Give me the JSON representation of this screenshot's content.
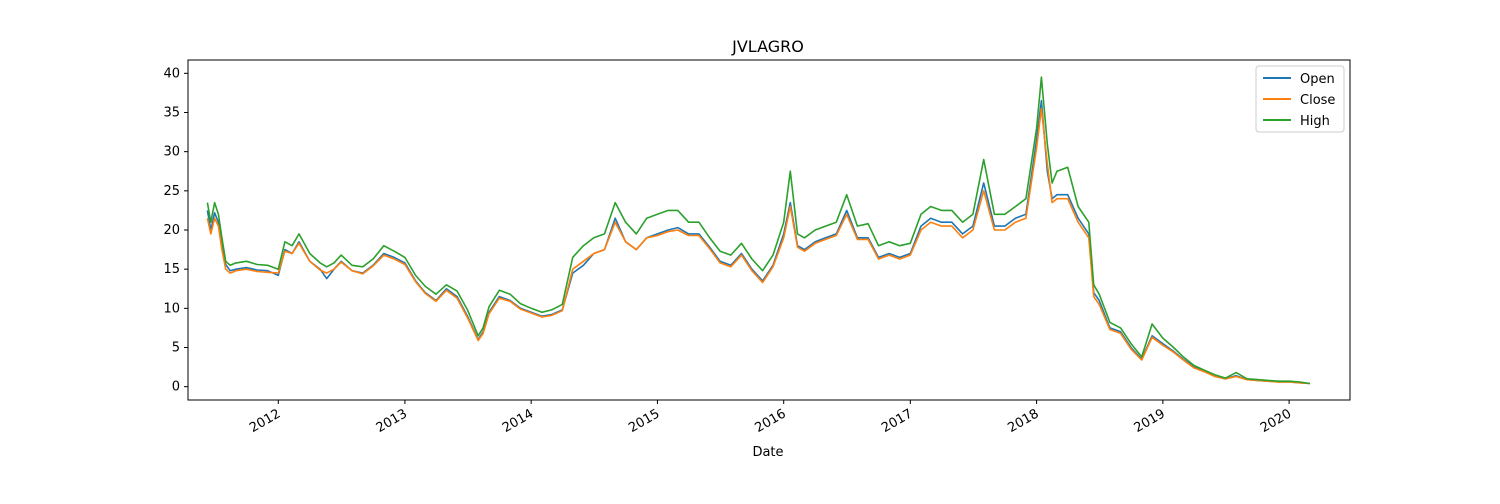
{
  "chart_data": {
    "type": "line",
    "title": "JVLAGRO",
    "xlabel": "Date",
    "ylabel": "",
    "x_range": [
      "2011-04-15",
      "2020-06-25"
    ],
    "ylim": [
      -1.7,
      41.7
    ],
    "yticks": [
      0,
      5,
      10,
      15,
      20,
      25,
      30,
      35,
      40
    ],
    "xticks": [
      {
        "label": "2012",
        "date": "2012-01-01"
      },
      {
        "label": "2013",
        "date": "2013-01-01"
      },
      {
        "label": "2014",
        "date": "2014-01-01"
      },
      {
        "label": "2015",
        "date": "2015-01-01"
      },
      {
        "label": "2016",
        "date": "2016-01-01"
      },
      {
        "label": "2017",
        "date": "2017-01-01"
      },
      {
        "label": "2018",
        "date": "2018-01-01"
      },
      {
        "label": "2019",
        "date": "2019-01-01"
      },
      {
        "label": "2020",
        "date": "2020-01-01"
      }
    ],
    "x_tick_rotation_deg": 30,
    "grid": false,
    "legend_position": "top-right",
    "x": [
      "2011-06-10",
      "2011-06-20",
      "2011-07-01",
      "2011-07-12",
      "2011-07-22",
      "2011-08-02",
      "2011-08-15",
      "2011-09-01",
      "2011-10-01",
      "2011-11-01",
      "2011-12-01",
      "2012-01-01",
      "2012-01-20",
      "2012-02-10",
      "2012-03-01",
      "2012-04-01",
      "2012-05-01",
      "2012-05-20",
      "2012-06-10",
      "2012-07-01",
      "2012-08-01",
      "2012-09-01",
      "2012-10-01",
      "2012-11-01",
      "2012-12-01",
      "2013-01-01",
      "2013-02-01",
      "2013-03-01",
      "2013-04-01",
      "2013-05-01",
      "2013-06-01",
      "2013-07-01",
      "2013-08-01",
      "2013-08-15",
      "2013-09-01",
      "2013-10-01",
      "2013-11-01",
      "2013-12-01",
      "2014-01-01",
      "2014-02-01",
      "2014-03-01",
      "2014-04-01",
      "2014-05-01",
      "2014-06-01",
      "2014-07-01",
      "2014-08-01",
      "2014-09-01",
      "2014-10-01",
      "2014-11-01",
      "2014-12-01",
      "2015-01-01",
      "2015-02-01",
      "2015-03-01",
      "2015-04-01",
      "2015-05-01",
      "2015-06-01",
      "2015-07-01",
      "2015-08-01",
      "2015-09-01",
      "2015-10-01",
      "2015-11-01",
      "2015-12-01",
      "2016-01-01",
      "2016-01-20",
      "2016-02-10",
      "2016-03-01",
      "2016-04-01",
      "2016-05-01",
      "2016-06-01",
      "2016-07-01",
      "2016-08-01",
      "2016-09-01",
      "2016-10-01",
      "2016-11-01",
      "2016-12-01",
      "2017-01-01",
      "2017-02-01",
      "2017-03-01",
      "2017-04-01",
      "2017-05-01",
      "2017-06-01",
      "2017-07-01",
      "2017-08-01",
      "2017-09-01",
      "2017-10-01",
      "2017-11-01",
      "2017-12-01",
      "2018-01-01",
      "2018-01-15",
      "2018-02-01",
      "2018-02-15",
      "2018-03-01",
      "2018-04-01",
      "2018-05-01",
      "2018-06-01",
      "2018-06-15",
      "2018-07-01",
      "2018-08-01",
      "2018-09-01",
      "2018-10-01",
      "2018-11-01",
      "2018-12-01",
      "2019-01-01",
      "2019-02-01",
      "2019-03-01",
      "2019-04-01",
      "2019-05-01",
      "2019-06-01",
      "2019-07-01",
      "2019-08-01",
      "2019-09-01",
      "2019-10-01",
      "2019-11-01",
      "2019-12-01",
      "2020-01-01",
      "2020-02-01",
      "2020-03-01"
    ],
    "series": [
      {
        "name": "Open",
        "color": "#1f77b4",
        "values": [
          22.5,
          20.0,
          22.2,
          21.0,
          18.0,
          15.6,
          14.8,
          15.0,
          15.2,
          14.9,
          14.8,
          14.2,
          17.5,
          17.0,
          18.5,
          16.0,
          15.0,
          13.8,
          15.0,
          16.0,
          14.8,
          14.5,
          15.5,
          17.0,
          16.5,
          15.8,
          13.5,
          12.0,
          11.0,
          12.5,
          11.5,
          9.0,
          6.0,
          7.0,
          9.5,
          11.5,
          11.0,
          10.0,
          9.5,
          9.0,
          9.2,
          9.8,
          14.5,
          15.5,
          17.0,
          17.5,
          21.5,
          18.5,
          17.5,
          19.0,
          19.5,
          20.0,
          20.3,
          19.5,
          19.5,
          17.8,
          16.0,
          15.5,
          17.0,
          15.0,
          13.5,
          15.5,
          19.5,
          23.5,
          18.0,
          17.5,
          18.5,
          19.0,
          19.5,
          22.5,
          19.0,
          19.0,
          16.5,
          17.0,
          16.5,
          17.0,
          20.5,
          21.5,
          21.0,
          21.0,
          19.5,
          20.5,
          26.0,
          20.5,
          20.5,
          21.5,
          22.0,
          31.5,
          36.5,
          27.5,
          24.0,
          24.5,
          24.5,
          21.5,
          19.5,
          12.0,
          11.0,
          7.5,
          7.0,
          5.0,
          3.5,
          6.5,
          5.5,
          4.5,
          3.5,
          2.5,
          2.0,
          1.3,
          1.0,
          1.4,
          0.9,
          0.8,
          0.7,
          0.6,
          0.6,
          0.5,
          0.4
        ]
      },
      {
        "name": "Close",
        "color": "#ff7f0e",
        "values": [
          21.5,
          19.5,
          21.5,
          20.5,
          17.5,
          15.0,
          14.5,
          14.8,
          15.0,
          14.7,
          14.6,
          14.5,
          17.3,
          17.0,
          18.3,
          16.0,
          14.9,
          14.5,
          15.0,
          15.9,
          14.8,
          14.4,
          15.4,
          16.8,
          16.3,
          15.6,
          13.4,
          11.9,
          10.9,
          12.3,
          11.3,
          8.8,
          5.9,
          6.8,
          9.3,
          11.3,
          10.9,
          9.9,
          9.4,
          8.9,
          9.1,
          9.7,
          15.0,
          16.0,
          17.0,
          17.5,
          21.0,
          18.5,
          17.5,
          19.0,
          19.3,
          19.8,
          20.0,
          19.3,
          19.3,
          17.6,
          15.8,
          15.3,
          16.8,
          14.8,
          13.3,
          15.3,
          19.0,
          23.0,
          17.8,
          17.3,
          18.3,
          18.8,
          19.3,
          22.0,
          18.8,
          18.8,
          16.3,
          16.8,
          16.3,
          16.8,
          20.0,
          21.0,
          20.5,
          20.5,
          19.0,
          20.0,
          25.0,
          20.0,
          20.0,
          21.0,
          21.5,
          30.5,
          35.5,
          28.5,
          23.5,
          24.0,
          24.0,
          21.0,
          19.0,
          11.5,
          10.5,
          7.3,
          6.8,
          4.8,
          3.4,
          6.3,
          5.3,
          4.4,
          3.4,
          2.4,
          1.9,
          1.3,
          1.0,
          1.3,
          0.9,
          0.8,
          0.7,
          0.6,
          0.6,
          0.5,
          0.4
        ]
      },
      {
        "name": "High",
        "color": "#2ca02c",
        "values": [
          23.5,
          21.0,
          23.5,
          22.0,
          19.0,
          16.0,
          15.5,
          15.8,
          16.0,
          15.6,
          15.5,
          15.0,
          18.5,
          18.0,
          19.5,
          17.0,
          15.8,
          15.3,
          15.8,
          16.8,
          15.5,
          15.3,
          16.3,
          18.0,
          17.3,
          16.5,
          14.2,
          12.8,
          11.8,
          13.0,
          12.2,
          9.8,
          6.5,
          7.5,
          10.2,
          12.3,
          11.8,
          10.6,
          10.0,
          9.5,
          9.8,
          10.5,
          16.5,
          18.0,
          19.0,
          19.5,
          23.5,
          21.0,
          19.5,
          21.5,
          22.0,
          22.5,
          22.5,
          21.0,
          21.0,
          19.0,
          17.3,
          16.8,
          18.3,
          16.3,
          14.8,
          16.8,
          21.0,
          27.5,
          19.5,
          19.0,
          20.0,
          20.5,
          21.0,
          24.5,
          20.5,
          20.8,
          18.0,
          18.5,
          18.0,
          18.3,
          22.0,
          23.0,
          22.5,
          22.5,
          21.0,
          22.0,
          29.0,
          22.0,
          22.0,
          23.0,
          24.0,
          33.0,
          39.5,
          31.0,
          26.0,
          27.5,
          28.0,
          23.0,
          21.0,
          13.0,
          11.8,
          8.2,
          7.5,
          5.5,
          3.8,
          8.0,
          6.2,
          5.0,
          3.8,
          2.7,
          2.1,
          1.5,
          1.1,
          1.8,
          1.0,
          0.9,
          0.8,
          0.7,
          0.7,
          0.6,
          0.4
        ]
      }
    ]
  }
}
